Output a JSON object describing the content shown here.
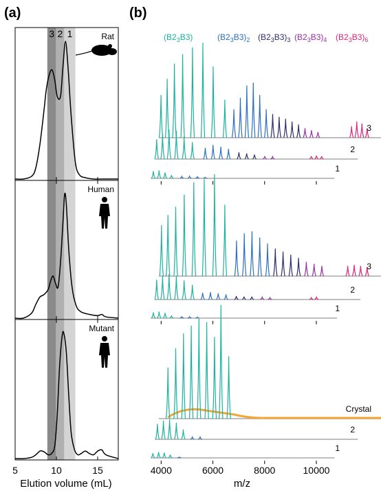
{
  "chart_data": [
    {
      "type": "line",
      "panel_label": "(a)",
      "xlabel": "Elution volume (mL)",
      "ylabel": "",
      "xlim": [
        5,
        17.5
      ],
      "xticks": [
        5,
        10,
        15
      ],
      "bands": [
        {
          "label": "3",
          "from": 8.9,
          "to": 9.95,
          "color": "#8a8a8a"
        },
        {
          "label": "2",
          "from": 9.95,
          "to": 10.95,
          "color": "#b0b0b0"
        },
        {
          "label": "1",
          "from": 10.95,
          "to": 12.3,
          "color": "#d4d4d4"
        }
      ],
      "subplots": [
        {
          "species": "Rat",
          "icon": "rat-icon",
          "x": [
            5,
            6,
            7,
            7.5,
            8,
            8.5,
            8.8,
            9.2,
            9.5,
            9.8,
            10.1,
            10.5,
            10.8,
            11.1,
            11.4,
            11.8,
            12.3,
            12.8,
            13.5,
            14.5,
            15.5,
            17.5
          ],
          "y": [
            0.0,
            0.0,
            0.02,
            0.08,
            0.25,
            0.5,
            0.66,
            0.77,
            0.79,
            0.72,
            0.6,
            0.6,
            0.82,
            1.0,
            0.82,
            0.45,
            0.12,
            0.03,
            0.01,
            0.0,
            0.0,
            0.0
          ]
        },
        {
          "species": "Human",
          "icon": "human-icon",
          "x": [
            5,
            6,
            7,
            7.5,
            8,
            8.5,
            9,
            9.3,
            9.6,
            9.9,
            10.2,
            10.5,
            10.8,
            11.0,
            11.2,
            11.5,
            11.9,
            12.4,
            13,
            14,
            15,
            15.5,
            16,
            17.5
          ],
          "y": [
            0.0,
            0.0,
            0.04,
            0.11,
            0.17,
            0.19,
            0.23,
            0.3,
            0.34,
            0.28,
            0.25,
            0.45,
            0.78,
            1.0,
            0.92,
            0.55,
            0.25,
            0.1,
            0.05,
            0.03,
            0.02,
            0.03,
            0.01,
            0.0
          ]
        },
        {
          "species": "Mutant",
          "icon": "human-icon",
          "x": [
            5,
            6,
            7,
            7.5,
            8,
            8.3,
            8.6,
            9.0,
            9.4,
            9.8,
            10.1,
            10.4,
            10.7,
            10.9,
            11.2,
            11.5,
            11.8,
            12.2,
            12.6,
            13,
            13.5,
            14,
            14.5,
            15,
            15.5,
            16,
            17.5
          ],
          "y": [
            0.0,
            0.0,
            0.01,
            0.03,
            0.06,
            0.06,
            0.05,
            0.03,
            0.04,
            0.1,
            0.35,
            0.75,
            0.98,
            1.0,
            0.85,
            0.5,
            0.2,
            0.07,
            0.03,
            0.04,
            0.06,
            0.04,
            0.03,
            0.06,
            0.07,
            0.03,
            0.0
          ]
        }
      ]
    },
    {
      "type": "line",
      "panel_label": "(b)",
      "xlabel": "m/z",
      "ylabel": "",
      "xlim": [
        3300,
        12500
      ],
      "xticks": [
        4000,
        6000,
        8000,
        10000
      ],
      "legend": [
        {
          "label": "(B2",
          "sub": "3",
          "tail": "B3)",
          "tail_sub": "",
          "color": "#1ab3a0"
        },
        {
          "label": "(B2",
          "sub": "3",
          "tail": "B3)",
          "tail_sub": "2",
          "color": "#2a6fc0"
        },
        {
          "label": "(B2",
          "sub": "3",
          "tail": "B3)",
          "tail_sub": "3",
          "color": "#2b2d6e"
        },
        {
          "label": "(B2",
          "sub": "3",
          "tail": "B3)",
          "tail_sub": "4",
          "color": "#9a2fa6"
        },
        {
          "label": "(B2",
          "sub": "3",
          "tail": "B3)",
          "tail_sub": "6",
          "color": "#e0257a"
        }
      ],
      "colors": {
        "monomer": "#1ab3a0",
        "dimer": "#2a6fc0",
        "trimer": "#2b2d6e",
        "tetramer": "#9a2fa6",
        "hexamer": "#e0257a",
        "baseline": "#a8a8a8",
        "crystal": "#f2a634"
      },
      "subplots": [
        {
          "name": "Rat",
          "traces": [
            {
              "label": "3",
              "start": 3700,
              "end": 12300,
              "monomer_peaks": [
                [
                  3780,
                  0.45
                ],
                [
                  4020,
                  0.62
                ],
                [
                  4300,
                  0.78
                ],
                [
                  4620,
                  0.88
                ],
                [
                  5000,
                  0.95
                ],
                [
                  5400,
                  1.0
                ],
                [
                  5800,
                  0.75
                ],
                [
                  6250,
                  0.4
                ]
              ],
              "dimer_peaks": [
                [
                  6600,
                  0.3
                ],
                [
                  6850,
                  0.42
                ],
                [
                  7100,
                  0.55
                ],
                [
                  7350,
                  0.58
                ],
                [
                  7600,
                  0.45
                ],
                [
                  7850,
                  0.3
                ]
              ],
              "trimer_peaks": [
                [
                  8100,
                  0.25
                ],
                [
                  8350,
                  0.22
                ],
                [
                  8600,
                  0.2
                ],
                [
                  8850,
                  0.17
                ],
                [
                  9100,
                  0.14
                ]
              ],
              "tetramer_peaks": [
                [
                  9350,
                  0.1
                ],
                [
                  9600,
                  0.08
                ],
                [
                  9850,
                  0.06
                ]
              ],
              "hexamer_peaks": [
                [
                  11150,
                  0.12
                ],
                [
                  11350,
                  0.17
                ],
                [
                  11550,
                  0.15
                ],
                [
                  11750,
                  0.1
                ]
              ]
            },
            {
              "label": "2",
              "start": 3650,
              "end": 11500,
              "monomer_peaks": [
                [
                  3720,
                  0.35
                ],
                [
                  3950,
                  0.45
                ],
                [
                  4200,
                  0.52
                ],
                [
                  4480,
                  0.5
                ],
                [
                  4780,
                  0.4
                ],
                [
                  5100,
                  0.3
                ]
              ],
              "dimer_peaks": [
                [
                  5600,
                  0.2
                ],
                [
                  5900,
                  0.25
                ],
                [
                  6200,
                  0.22
                ],
                [
                  6500,
                  0.18
                ]
              ],
              "trimer_peaks": [
                [
                  6900,
                  0.12
                ],
                [
                  7200,
                  0.1
                ],
                [
                  7500,
                  0.08
                ]
              ],
              "tetramer_peaks": [
                [
                  7900,
                  0.05
                ],
                [
                  8200,
                  0.04
                ]
              ],
              "hexamer_peaks": [
                [
                  9700,
                  0.05
                ],
                [
                  9900,
                  0.06
                ],
                [
                  10100,
                  0.05
                ]
              ]
            },
            {
              "label": "1",
              "start": 3600,
              "end": 10700,
              "monomer_peaks": [
                [
                  3700,
                  0.28
                ],
                [
                  3920,
                  0.3
                ],
                [
                  4150,
                  0.22
                ],
                [
                  4400,
                  0.12
                ]
              ],
              "dimer_peaks": [
                [
                  4800,
                  0.07
                ],
                [
                  5100,
                  0.08
                ],
                [
                  5400,
                  0.06
                ],
                [
                  5700,
                  0.04
                ]
              ],
              "trimer_peaks": [],
              "tetramer_peaks": [],
              "hexamer_peaks": []
            }
          ]
        },
        {
          "name": "Human",
          "traces": [
            {
              "label": "3",
              "start": 3700,
              "end": 12400,
              "monomer_peaks": [
                [
                  3800,
                  0.5
                ],
                [
                  4050,
                  0.6
                ],
                [
                  4350,
                  0.68
                ],
                [
                  4680,
                  0.8
                ],
                [
                  5050,
                  0.92
                ],
                [
                  5450,
                  0.95
                ],
                [
                  5850,
                  1.0
                ],
                [
                  6250,
                  0.7
                ]
              ],
              "dimer_peaks": [
                [
                  6700,
                  0.35
                ],
                [
                  7000,
                  0.42
                ],
                [
                  7300,
                  0.44
                ],
                [
                  7600,
                  0.38
                ],
                [
                  7900,
                  0.32
                ]
              ],
              "trimer_peaks": [
                [
                  8200,
                  0.27
                ],
                [
                  8500,
                  0.24
                ],
                [
                  8800,
                  0.21
                ],
                [
                  9100,
                  0.18
                ]
              ],
              "tetramer_peaks": [
                [
                  9400,
                  0.14
                ],
                [
                  9700,
                  0.12
                ],
                [
                  10000,
                  0.1
                ]
              ],
              "hexamer_peaks": [
                [
                  11000,
                  0.1
                ],
                [
                  11250,
                  0.11
                ],
                [
                  11500,
                  0.1
                ],
                [
                  11750,
                  0.09
                ]
              ]
            },
            {
              "label": "2",
              "start": 3650,
              "end": 11600,
              "monomer_peaks": [
                [
                  3720,
                  0.35
                ],
                [
                  3950,
                  0.42
                ],
                [
                  4200,
                  0.45
                ],
                [
                  4480,
                  0.42
                ],
                [
                  4780,
                  0.34
                ],
                [
                  5100,
                  0.26
                ]
              ],
              "dimer_peaks": [
                [
                  5500,
                  0.12
                ],
                [
                  5800,
                  0.13
                ],
                [
                  6100,
                  0.11
                ],
                [
                  6400,
                  0.09
                ]
              ],
              "trimer_peaks": [
                [
                  6800,
                  0.06
                ],
                [
                  7100,
                  0.05
                ],
                [
                  7400,
                  0.05
                ]
              ],
              "tetramer_peaks": [
                [
                  7800,
                  0.04
                ],
                [
                  8100,
                  0.03
                ]
              ],
              "hexamer_peaks": [
                [
                  9700,
                  0.03
                ],
                [
                  9900,
                  0.04
                ]
              ]
            },
            {
              "label": "1",
              "start": 3600,
              "end": 10800,
              "monomer_peaks": [
                [
                  3700,
                  0.22
                ],
                [
                  3920,
                  0.25
                ],
                [
                  4150,
                  0.2
                ],
                [
                  4400,
                  0.1
                ]
              ],
              "dimer_peaks": [
                [
                  4800,
                  0.05
                ],
                [
                  5100,
                  0.05
                ],
                [
                  5400,
                  0.04
                ]
              ],
              "trimer_peaks": [],
              "tetramer_peaks": [],
              "hexamer_peaks": []
            }
          ]
        },
        {
          "name": "Mutant",
          "traces": [
            {
              "label": "Crystal",
              "start": 3700,
              "end": 12500,
              "monomer_peaks": [
                [
                  4050,
                  0.45
                ],
                [
                  4350,
                  0.62
                ],
                [
                  4650,
                  0.75
                ],
                [
                  4950,
                  0.82
                ],
                [
                  5250,
                  0.88
                ],
                [
                  5550,
                  0.85
                ],
                [
                  5850,
                  0.72
                ],
                [
                  6100,
                  1.0
                ],
                [
                  6400,
                  0.55
                ]
              ],
              "dimer_peaks": [],
              "trimer_peaks": [],
              "tetramer_peaks": [],
              "hexamer_peaks": [],
              "crystal_hump": true
            },
            {
              "label": "2",
              "start": 3650,
              "end": 11500,
              "monomer_peaks": [
                [
                  3750,
                  0.28
                ],
                [
                  3980,
                  0.34
                ],
                [
                  4220,
                  0.36
                ],
                [
                  4480,
                  0.3
                ],
                [
                  4750,
                  0.18
                ]
              ],
              "dimer_peaks": [
                [
                  5100,
                  0.04
                ],
                [
                  5400,
                  0.04
                ]
              ],
              "trimer_peaks": [],
              "tetramer_peaks": [],
              "hexamer_peaks": []
            },
            {
              "label": "1",
              "start": 3600,
              "end": 10700,
              "monomer_peaks": [
                [
                  3680,
                  0.18
                ],
                [
                  3900,
                  0.22
                ],
                [
                  4120,
                  0.2
                ],
                [
                  4350,
                  0.12
                ]
              ],
              "dimer_peaks": [
                [
                  4700,
                  0.03
                ]
              ],
              "trimer_peaks": [],
              "tetramer_peaks": [],
              "hexamer_peaks": []
            }
          ]
        }
      ]
    }
  ]
}
